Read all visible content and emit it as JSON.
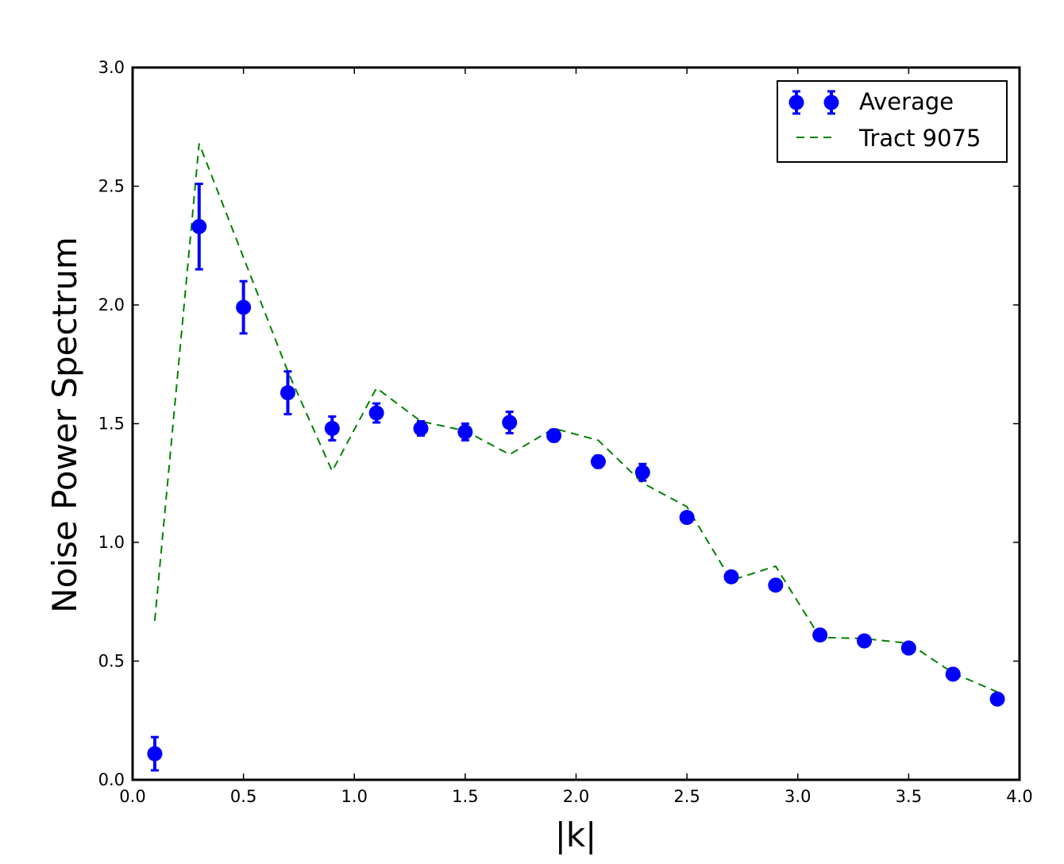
{
  "chart_data": {
    "type": "scatter",
    "xlabel": "|k|",
    "ylabel": "Noise Power Spectrum",
    "xlim": [
      0.0,
      4.0
    ],
    "ylim": [
      0.0,
      3.0
    ],
    "xticks": [
      "0.0",
      "0.5",
      "1.0",
      "1.5",
      "2.0",
      "2.5",
      "3.0",
      "3.5",
      "4.0"
    ],
    "yticks": [
      "0.0",
      "0.5",
      "1.0",
      "1.5",
      "2.0",
      "2.5",
      "3.0"
    ],
    "grid": false,
    "legend_position": "top-right",
    "series": [
      {
        "name": "Average",
        "kind": "errorbar",
        "color": "#0000ff",
        "x": [
          0.1,
          0.3,
          0.5,
          0.7,
          0.9,
          1.1,
          1.3,
          1.5,
          1.7,
          1.9,
          2.1,
          2.3,
          2.5,
          2.7,
          2.9,
          3.1,
          3.3,
          3.5,
          3.7,
          3.9
        ],
        "y": [
          0.11,
          2.33,
          1.99,
          1.63,
          1.48,
          1.545,
          1.48,
          1.465,
          1.505,
          1.45,
          1.34,
          1.295,
          1.105,
          0.855,
          0.82,
          0.61,
          0.585,
          0.555,
          0.445,
          0.34
        ],
        "yerr": [
          0.07,
          0.18,
          0.11,
          0.09,
          0.05,
          0.04,
          0.03,
          0.035,
          0.045,
          0.025,
          0.025,
          0.035,
          0.02,
          0.02,
          0.02,
          0.02,
          0.02,
          0.02,
          0.02,
          0.02
        ]
      },
      {
        "name": "Tract 9075",
        "kind": "dashed-line",
        "color": "#008000",
        "x": [
          0.1,
          0.3,
          0.5,
          0.7,
          0.9,
          1.1,
          1.3,
          1.5,
          1.7,
          1.9,
          2.1,
          2.3,
          2.5,
          2.7,
          2.9,
          3.1,
          3.3,
          3.5,
          3.7,
          3.9
        ],
        "y": [
          0.67,
          2.68,
          2.2,
          1.72,
          1.3,
          1.65,
          1.51,
          1.47,
          1.37,
          1.48,
          1.43,
          1.25,
          1.15,
          0.84,
          0.9,
          0.6,
          0.595,
          0.575,
          0.45,
          0.37
        ]
      }
    ]
  }
}
